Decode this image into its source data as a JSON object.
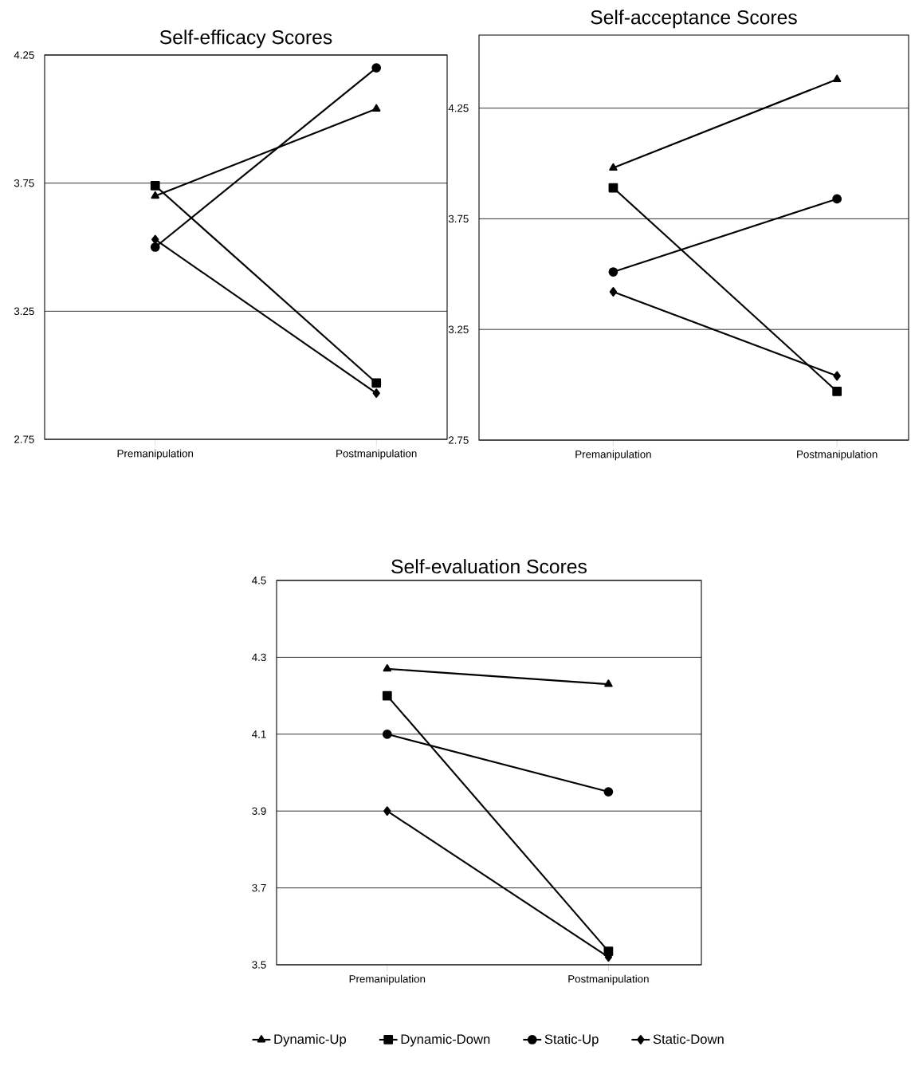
{
  "chart_data": [
    {
      "type": "line",
      "title": "Self-efficacy Scores",
      "categories": [
        "Premanipulation",
        "Postmanipulation"
      ],
      "ylim": [
        2.75,
        4.25
      ],
      "yticks": [
        2.75,
        3.25,
        3.75,
        4.25
      ],
      "grid": "y",
      "line_style": "solid",
      "series": [
        {
          "color": "#000000",
          "marker": "triangle",
          "values": [
            3.7,
            4.04
          ]
        },
        {
          "color": "#000000",
          "marker": "square",
          "values": [
            3.74,
            2.97
          ]
        },
        {
          "color": "#000000",
          "marker": "circle",
          "values": [
            3.5,
            4.2
          ]
        },
        {
          "color": "#000000",
          "marker": "diamond",
          "values": [
            3.53,
            2.93
          ]
        }
      ]
    },
    {
      "type": "line",
      "title": "Self-acceptance Scores",
      "categories": [
        "Premanipulation",
        "Postmanipulation"
      ],
      "ylim": [
        2.75,
        4.58
      ],
      "yticks": [
        2.75,
        3.25,
        3.75,
        4.25
      ],
      "grid": "y",
      "line_style": "solid",
      "series": [
        {
          "color": "#000000",
          "marker": "triangle",
          "values": [
            3.98,
            4.38
          ]
        },
        {
          "color": "#000000",
          "marker": "square",
          "values": [
            3.89,
            2.97
          ]
        },
        {
          "color": "#000000",
          "marker": "circle",
          "values": [
            3.51,
            3.84
          ]
        },
        {
          "color": "#000000",
          "marker": "diamond",
          "values": [
            3.42,
            3.04
          ]
        }
      ]
    },
    {
      "type": "line",
      "title": "Self-evaluation Scores",
      "categories": [
        "Premanipulation",
        "Postmanipulation"
      ],
      "ylim": [
        3.5,
        4.5
      ],
      "yticks": [
        3.5,
        3.7,
        3.9,
        4.1,
        4.3,
        4.5
      ],
      "grid": "y",
      "line_style": "solid",
      "legend": "bottom",
      "series": [
        {
          "name": "Dynamic-Up",
          "color": "#000000",
          "marker": "triangle",
          "values": [
            4.27,
            4.23
          ]
        },
        {
          "name": "Dynamic-Down",
          "color": "#000000",
          "marker": "square",
          "values": [
            4.2,
            3.535
          ]
        },
        {
          "name": "Static-Up",
          "color": "#000000",
          "marker": "circle",
          "values": [
            4.1,
            3.95
          ]
        },
        {
          "name": "Static-Down",
          "color": "#000000",
          "marker": "diamond",
          "values": [
            3.9,
            3.52
          ]
        }
      ]
    }
  ]
}
